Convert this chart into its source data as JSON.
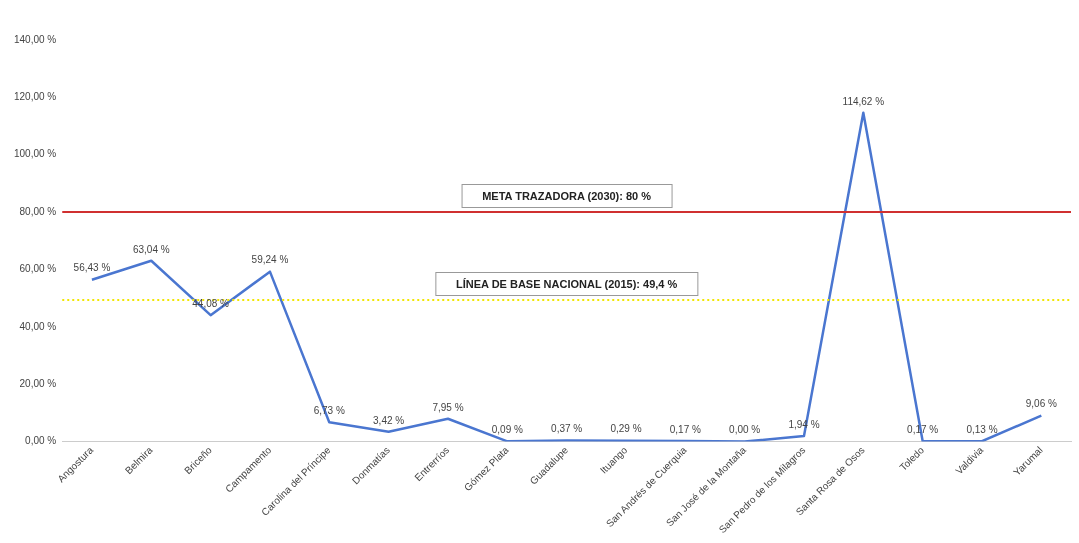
{
  "chart_data": {
    "type": "line",
    "categories": [
      "Angostura",
      "Belmira",
      "Briceño",
      "Campamento",
      "Carolina del Príncipe",
      "Donmatías",
      "Entrerríos",
      "Gómez Plata",
      "Guadalupe",
      "Ituango",
      "San Andrés de Cuerquia",
      "San José de la Montaña",
      "San Pedro de los Milagros",
      "Santa Rosa de Osos",
      "Toledo",
      "Valdivia",
      "Yarumal"
    ],
    "series": [
      {
        "color": "#4a76d0",
        "values": [
          56.43,
          63.04,
          44.08,
          59.24,
          6.73,
          3.42,
          7.95,
          0.09,
          0.37,
          0.29,
          0.17,
          0.0,
          1.94,
          114.62,
          0.17,
          0.13,
          9.06
        ],
        "value_labels": [
          "56,43 %",
          "63,04 %",
          "44,08 %",
          "59,24 %",
          "6,73 %",
          "3,42 %",
          "7,95 %",
          "0,09 %",
          "0,37 %",
          "0,29 %",
          "0,17 %",
          "0,00 %",
          "1,94 %",
          "114,62 %",
          "0,17 %",
          "0,13 %",
          "9,06 %"
        ]
      }
    ],
    "ylim": [
      0,
      140
    ],
    "yticks": [
      {
        "value": 0,
        "label": "0,00 %"
      },
      {
        "value": 20,
        "label": "20,00 %"
      },
      {
        "value": 40,
        "label": "40,00 %"
      },
      {
        "value": 60,
        "label": "60,00 %"
      },
      {
        "value": 80,
        "label": "80,00 %"
      },
      {
        "value": 100,
        "label": "100,00 %"
      },
      {
        "value": 120,
        "label": "120,00 %"
      },
      {
        "value": 140,
        "label": "140,00 %"
      }
    ],
    "ref_lines": [
      {
        "axis": "y",
        "value": 80,
        "label": "META TRAZADORA (2030): 80 %",
        "color": "#d03030",
        "line_style": "solid"
      },
      {
        "axis": "y",
        "value": 49.4,
        "label": "LÍNEA DE BASE NACIONAL (2015): 49,4 %",
        "color": "#f2e600",
        "line_style": "dotted"
      }
    ],
    "grid": false,
    "legend": false,
    "marker": "none",
    "line_style": "solid"
  }
}
